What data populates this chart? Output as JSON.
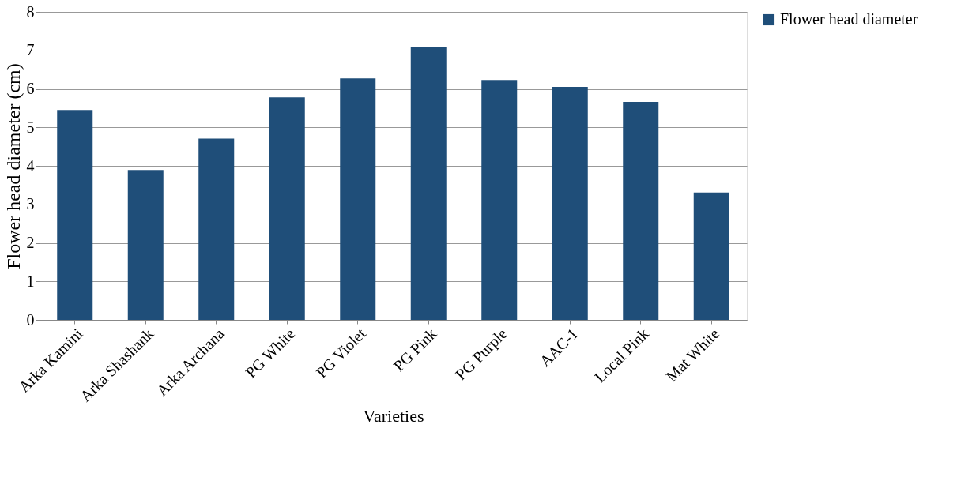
{
  "chart_data": {
    "type": "bar",
    "xlabel": "Varieties",
    "ylabel": "Flower head diameter (cm)",
    "categories": [
      "Arka Kamini",
      "Arka Shashank",
      "Arka Archana",
      "PG White",
      "PG Violet",
      "PG Pink",
      "PG Purple",
      "AAC-1",
      "Local Pink",
      "Mat White"
    ],
    "series": [
      {
        "name": "Flower head diameter",
        "color": "#1f4e79",
        "values": [
          5.45,
          3.89,
          4.71,
          5.78,
          6.27,
          7.08,
          6.23,
          6.05,
          5.66,
          3.31
        ]
      }
    ],
    "ylim": [
      0,
      8
    ],
    "yticks": [
      0,
      1,
      2,
      3,
      4,
      5,
      6,
      7,
      8
    ],
    "grid": "y",
    "legend": "right"
  }
}
